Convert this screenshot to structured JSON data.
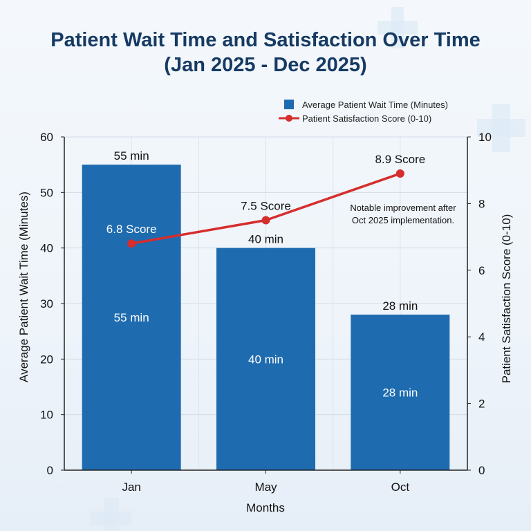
{
  "title_line1": "Patient Wait Time and Satisfaction Over Time",
  "title_line2": "(Jan 2025 - Dec 2025)",
  "colors": {
    "bar": "#1e6bb0",
    "line": "#d62d2d",
    "title": "#163a63",
    "text": "#111111"
  },
  "chart_data": {
    "type": "bar+line",
    "categories": [
      "Jan",
      "May",
      "Oct"
    ],
    "xlabel": "Months",
    "ylabel": "Average Patient Wait Time (Minutes)",
    "y2label": "Patient Satisfaction Score (0-10)",
    "ylim": [
      0,
      60
    ],
    "y_ticks": [
      0,
      10,
      20,
      30,
      40,
      50,
      60
    ],
    "y2lim": [
      0,
      10
    ],
    "y2_ticks": [
      0,
      2,
      4,
      6,
      8,
      10
    ],
    "grid": true,
    "legend_position": "top-right",
    "series": [
      {
        "name": "Average Patient Wait Time (Minutes)",
        "kind": "bar",
        "axis": "left",
        "values": [
          55,
          40,
          28
        ],
        "top_labels": [
          "55 min",
          "40 min",
          "28 min"
        ],
        "inner_labels": [
          "55 min",
          "40 min",
          "28 min"
        ]
      },
      {
        "name": "Patient Satisfaction Score (0-10)",
        "kind": "line",
        "axis": "right",
        "values": [
          6.8,
          7.5,
          8.9
        ],
        "labels": [
          "6.8 Score",
          "7.5 Score",
          "8.9 Score"
        ]
      }
    ],
    "annotation": [
      "Notable improvement after",
      "Oct 2025 implementation."
    ]
  }
}
